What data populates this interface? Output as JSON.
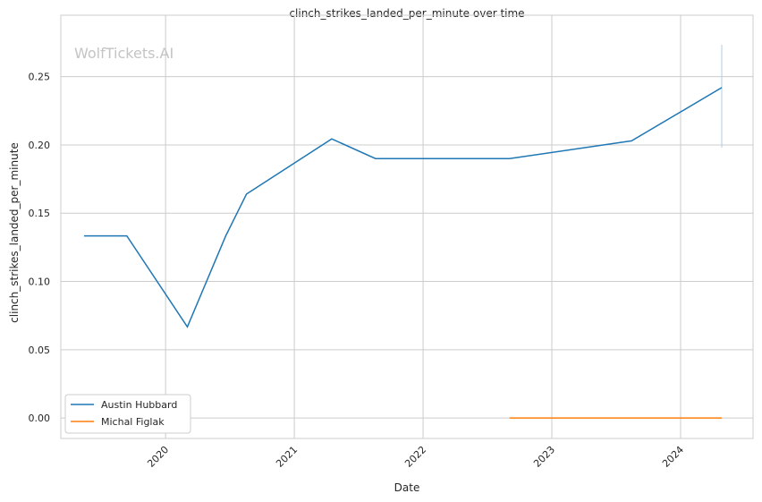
{
  "chart_data": {
    "type": "line",
    "title": "clinch_strikes_landed_per_minute over time",
    "xlabel": "Date",
    "ylabel": "clinch_strikes_landed_per_minute",
    "watermark": "WolfTickets.AI",
    "xlim": [
      "2019-03-10",
      "2024-07-25"
    ],
    "ylim": [
      -0.015,
      0.295
    ],
    "x_ticks": [
      "2020",
      "2021",
      "2022",
      "2023",
      "2024"
    ],
    "y_ticks": [
      "0.00",
      "0.05",
      "0.10",
      "0.15",
      "0.20",
      "0.25"
    ],
    "grid": true,
    "legend_position": "lower-left",
    "series": [
      {
        "name": "Austin Hubbard",
        "color": "#1f77b4",
        "points": [
          {
            "x": "2019-05-15",
            "y": 0.1334
          },
          {
            "x": "2019-09-13",
            "y": 0.1334
          },
          {
            "x": "2020-03-03",
            "y": 0.0667
          },
          {
            "x": "2020-06-20",
            "y": 0.1334
          },
          {
            "x": "2020-08-18",
            "y": 0.164
          },
          {
            "x": "2021-04-17",
            "y": 0.2044
          },
          {
            "x": "2021-08-19",
            "y": 0.19
          },
          {
            "x": "2022-09-03",
            "y": 0.19
          },
          {
            "x": "2023-08-15",
            "y": 0.203
          },
          {
            "x": "2024-04-27",
            "y": 0.242
          }
        ]
      },
      {
        "name": "Michal Figlak",
        "color": "#ff7f0e",
        "points": [
          {
            "x": "2022-09-03",
            "y": 0.0
          },
          {
            "x": "2023-08-15",
            "y": 0.0
          },
          {
            "x": "2024-04-27",
            "y": 0.0
          }
        ]
      }
    ]
  }
}
